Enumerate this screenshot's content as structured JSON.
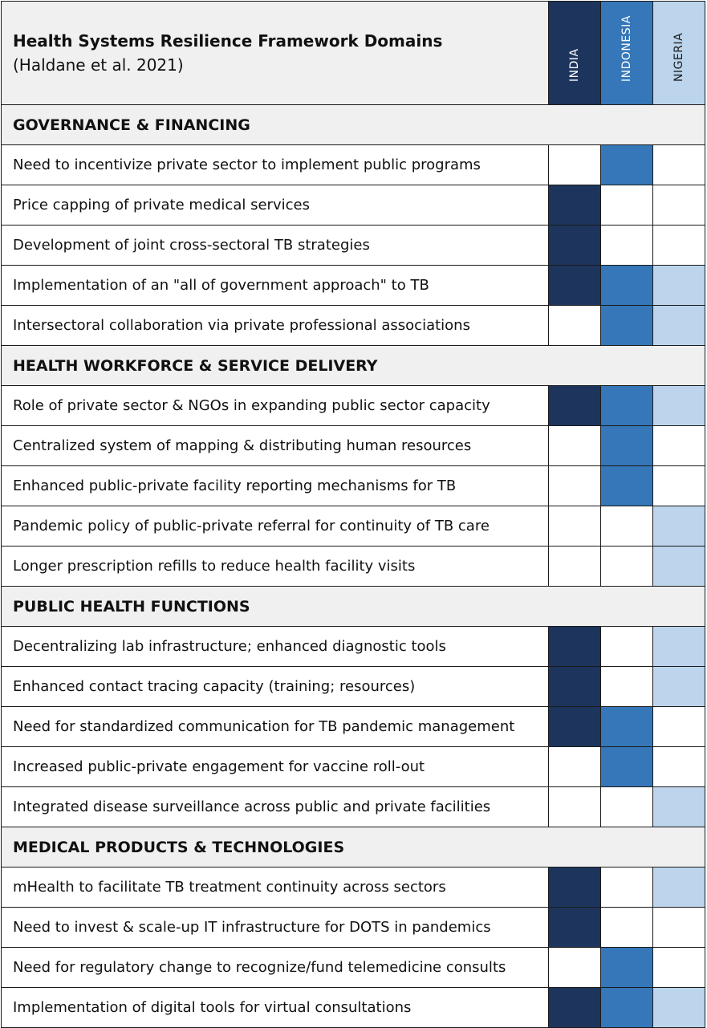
{
  "header": {
    "title": "Health Systems Resilience Framework Domains",
    "citation": "(Haldane et al. 2021)"
  },
  "countries": [
    {
      "key": "india",
      "label": "INDIA",
      "color": "#1d355d"
    },
    {
      "key": "indonesia",
      "label": "INDONESIA",
      "color": "#3577b8"
    },
    {
      "key": "nigeria",
      "label": "NIGERIA",
      "color": "#bcd5ed"
    }
  ],
  "sections": [
    {
      "title": "GOVERNANCE & FINANCING",
      "items": [
        {
          "label": "Need to incentivize private sector to implement public programs",
          "india": false,
          "indonesia": true,
          "nigeria": false
        },
        {
          "label": "Price capping of private medical services",
          "india": true,
          "indonesia": false,
          "nigeria": false
        },
        {
          "label": "Development of joint cross-sectoral TB strategies",
          "india": true,
          "indonesia": false,
          "nigeria": false
        },
        {
          "label": "Implementation of an \"all of government approach\" to TB",
          "india": true,
          "indonesia": true,
          "nigeria": true
        },
        {
          "label": "Intersectoral collaboration via private professional associations",
          "india": false,
          "indonesia": true,
          "nigeria": true
        }
      ]
    },
    {
      "title": "HEALTH WORKFORCE & SERVICE DELIVERY",
      "items": [
        {
          "label": "Role of private sector & NGOs in expanding public sector capacity",
          "india": true,
          "indonesia": true,
          "nigeria": true
        },
        {
          "label": "Centralized system of mapping & distributing human resources",
          "india": false,
          "indonesia": true,
          "nigeria": false
        },
        {
          "label": "Enhanced public-private facility reporting mechanisms for TB",
          "india": false,
          "indonesia": true,
          "nigeria": false
        },
        {
          "label": "Pandemic policy of public-private referral for continuity of TB care",
          "india": false,
          "indonesia": false,
          "nigeria": true
        },
        {
          "label": "Longer prescription refills to reduce health facility visits",
          "india": false,
          "indonesia": false,
          "nigeria": true
        }
      ]
    },
    {
      "title": "PUBLIC HEALTH FUNCTIONS",
      "items": [
        {
          "label": "Decentralizing lab infrastructure; enhanced diagnostic tools",
          "india": true,
          "indonesia": false,
          "nigeria": true
        },
        {
          "label": "Enhanced contact tracing capacity (training; resources)",
          "india": true,
          "indonesia": false,
          "nigeria": true
        },
        {
          "label": "Need for standardized communication for TB pandemic management",
          "india": true,
          "indonesia": true,
          "nigeria": false
        },
        {
          "label": "Increased public-private engagement for vaccine roll-out",
          "india": false,
          "indonesia": true,
          "nigeria": false
        },
        {
          "label": "Integrated disease surveillance across public and private facilities",
          "india": false,
          "indonesia": false,
          "nigeria": true
        }
      ]
    },
    {
      "title": "MEDICAL PRODUCTS & TECHNOLOGIES",
      "items": [
        {
          "label": "mHealth to facilitate TB treatment continuity across sectors",
          "india": true,
          "indonesia": false,
          "nigeria": true
        },
        {
          "label": "Need to invest & scale-up IT infrastructure for DOTS in pandemics",
          "india": true,
          "indonesia": false,
          "nigeria": false
        },
        {
          "label": "Need for regulatory change to recognize/fund telemedicine consults",
          "india": false,
          "indonesia": true,
          "nigeria": false
        },
        {
          "label": "Implementation of digital tools for virtual consultations",
          "india": true,
          "indonesia": true,
          "nigeria": true
        }
      ]
    }
  ]
}
